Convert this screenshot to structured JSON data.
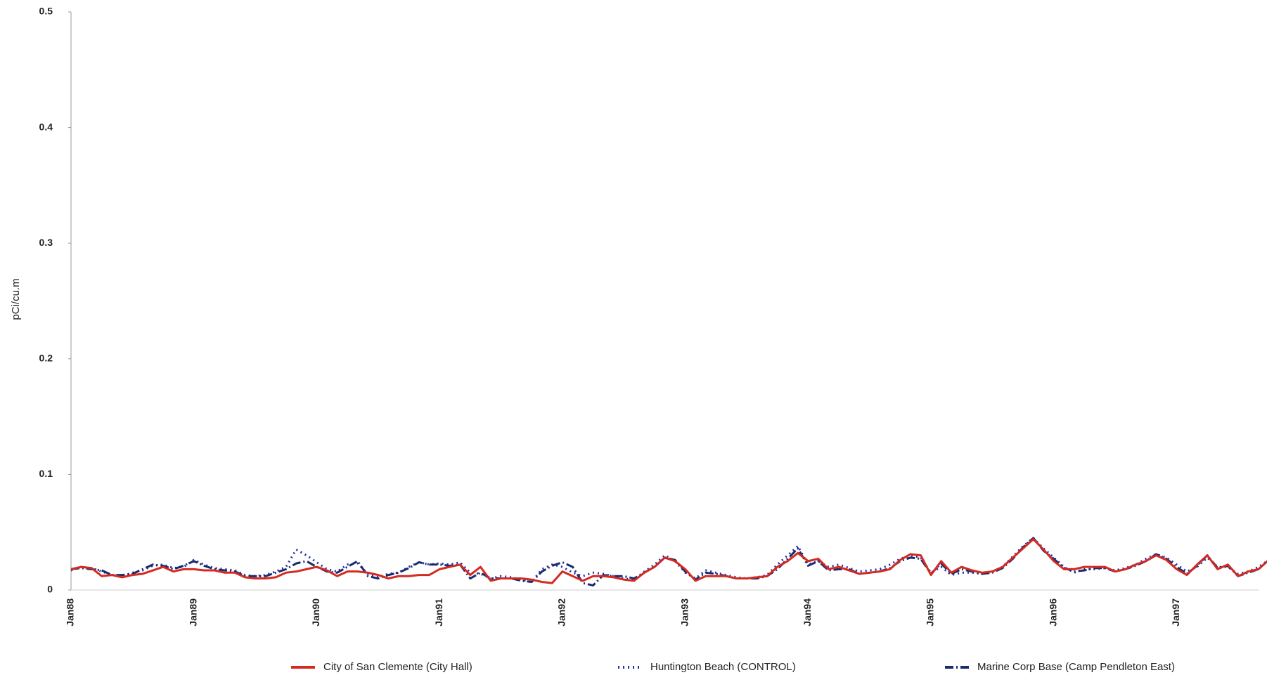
{
  "chart_data": {
    "type": "line",
    "y_label": "pCi/cu.m",
    "categories": [
      "Jan88",
      null,
      null,
      null,
      null,
      null,
      null,
      null,
      null,
      null,
      null,
      null,
      "Jan89",
      null,
      null,
      null,
      null,
      null,
      null,
      null,
      null,
      null,
      null,
      null,
      "Jan90",
      null,
      null,
      null,
      null,
      null,
      null,
      null,
      null,
      null,
      null,
      null,
      "Jan91",
      null,
      null,
      null,
      null,
      null,
      null,
      null,
      null,
      null,
      null,
      null,
      "Jan92",
      null,
      null,
      null,
      null,
      null,
      null,
      null,
      null,
      null,
      null,
      null,
      "Jan93",
      null,
      null,
      null,
      null,
      null,
      null,
      null,
      null,
      null,
      null,
      null,
      "Jan94",
      null,
      null,
      null,
      null,
      null,
      null,
      null,
      null,
      null,
      null,
      null,
      "Jan95",
      null,
      null,
      null,
      null,
      null,
      null,
      null,
      null,
      null,
      null,
      null,
      "Jan96",
      null,
      null,
      null,
      null,
      null,
      null,
      null,
      null,
      null,
      null,
      null,
      "Jan97",
      null,
      null,
      null,
      null,
      null,
      null,
      null,
      null,
      null,
      null,
      null
    ],
    "ylim": [
      0,
      0.5
    ],
    "yticks": [
      0,
      0.1,
      0.2,
      0.3,
      0.4,
      0.5
    ],
    "series": [
      {
        "name": "City of San Clemente (City Hall)",
        "color": "#d42a20",
        "style": "solid",
        "values": [
          0.018,
          0.02,
          0.019,
          0.012,
          0.013,
          0.011,
          0.013,
          0.014,
          0.017,
          0.02,
          0.016,
          0.018,
          0.018,
          0.017,
          0.017,
          0.015,
          0.015,
          0.011,
          0.01,
          0.01,
          0.011,
          0.015,
          0.016,
          0.018,
          0.02,
          0.017,
          0.012,
          0.016,
          0.016,
          0.015,
          0.013,
          0.01,
          0.012,
          0.012,
          0.013,
          0.013,
          0.018,
          0.02,
          0.022,
          0.013,
          0.02,
          0.008,
          0.01,
          0.01,
          0.01,
          0.009,
          0.007,
          0.006,
          0.016,
          0.012,
          0.008,
          0.012,
          0.012,
          0.011,
          0.009,
          0.008,
          0.015,
          0.02,
          0.028,
          0.025,
          0.018,
          0.008,
          0.012,
          0.012,
          0.012,
          0.01,
          0.01,
          0.011,
          0.012,
          0.02,
          0.025,
          0.032,
          0.025,
          0.027,
          0.018,
          0.02,
          0.017,
          0.014,
          0.015,
          0.016,
          0.018,
          0.026,
          0.031,
          0.03,
          0.013,
          0.025,
          0.015,
          0.02,
          0.017,
          0.015,
          0.016,
          0.02,
          0.028,
          0.036,
          0.044,
          0.035,
          0.025,
          0.018,
          0.018,
          0.02,
          0.02,
          0.02,
          0.016,
          0.018,
          0.022,
          0.025,
          0.03,
          0.026,
          0.018,
          0.013,
          0.022,
          0.03,
          0.018,
          0.022,
          0.012,
          0.016,
          0.018,
          0.026,
          0.032,
          0.022
        ]
      },
      {
        "name": "Huntington Beach  (CONTROL)",
        "color": "#1f2fa8",
        "style": "dotted",
        "values": [
          0.017,
          0.02,
          0.019,
          0.016,
          0.013,
          0.012,
          0.015,
          0.017,
          0.021,
          0.022,
          0.019,
          0.02,
          0.026,
          0.022,
          0.019,
          0.018,
          0.017,
          0.013,
          0.012,
          0.013,
          0.016,
          0.02,
          0.035,
          0.03,
          0.024,
          0.018,
          0.016,
          0.022,
          0.023,
          0.014,
          0.011,
          0.014,
          0.015,
          0.02,
          0.024,
          0.022,
          0.023,
          0.022,
          0.024,
          0.015,
          0.014,
          0.01,
          0.012,
          0.011,
          0.009,
          0.007,
          0.018,
          0.022,
          0.02,
          0.015,
          0.012,
          0.015,
          0.014,
          0.012,
          0.01,
          0.009,
          0.016,
          0.022,
          0.03,
          0.025,
          0.015,
          0.01,
          0.017,
          0.015,
          0.013,
          0.011,
          0.01,
          0.011,
          0.013,
          0.022,
          0.03,
          0.038,
          0.022,
          0.025,
          0.02,
          0.022,
          0.019,
          0.016,
          0.017,
          0.018,
          0.022,
          0.027,
          0.03,
          0.028,
          0.015,
          0.02,
          0.013,
          0.015,
          0.015,
          0.014,
          0.016,
          0.02,
          0.029,
          0.038,
          0.045,
          0.036,
          0.028,
          0.02,
          0.015,
          0.018,
          0.018,
          0.019,
          0.017,
          0.019,
          0.022,
          0.027,
          0.031,
          0.028,
          0.022,
          0.016,
          0.02,
          0.028,
          0.02,
          0.02,
          0.014,
          0.016,
          0.02,
          0.026,
          0.03,
          0.035
        ]
      },
      {
        "name": "Marine Corp Base (Camp Pendleton East)",
        "color": "#1a2a6c",
        "style": "dashdot",
        "values": [
          0.018,
          0.019,
          0.018,
          0.017,
          0.013,
          0.013,
          0.014,
          0.018,
          0.022,
          0.021,
          0.018,
          0.021,
          0.025,
          0.021,
          0.018,
          0.017,
          0.016,
          0.012,
          0.012,
          0.012,
          0.015,
          0.018,
          0.023,
          0.025,
          0.02,
          0.016,
          0.015,
          0.02,
          0.025,
          0.012,
          0.01,
          0.013,
          0.015,
          0.019,
          0.024,
          0.022,
          0.022,
          0.021,
          0.022,
          0.01,
          0.015,
          0.01,
          0.01,
          0.01,
          0.008,
          0.007,
          0.016,
          0.021,
          0.024,
          0.02,
          0.006,
          0.004,
          0.013,
          0.012,
          0.012,
          0.01,
          0.015,
          0.02,
          0.028,
          0.026,
          0.016,
          0.009,
          0.015,
          0.014,
          0.012,
          0.01,
          0.01,
          0.01,
          0.012,
          0.018,
          0.027,
          0.036,
          0.021,
          0.025,
          0.017,
          0.018,
          0.018,
          0.014,
          0.015,
          0.016,
          0.019,
          0.025,
          0.028,
          0.027,
          0.014,
          0.023,
          0.014,
          0.018,
          0.016,
          0.014,
          0.015,
          0.019,
          0.027,
          0.037,
          0.045,
          0.034,
          0.027,
          0.019,
          0.016,
          0.017,
          0.019,
          0.019,
          0.016,
          0.018,
          0.021,
          0.025,
          0.031,
          0.027,
          0.02,
          0.014,
          0.021,
          0.03,
          0.019,
          0.021,
          0.012,
          0.015,
          0.018,
          0.026,
          0.031,
          0.033
        ]
      }
    ]
  }
}
